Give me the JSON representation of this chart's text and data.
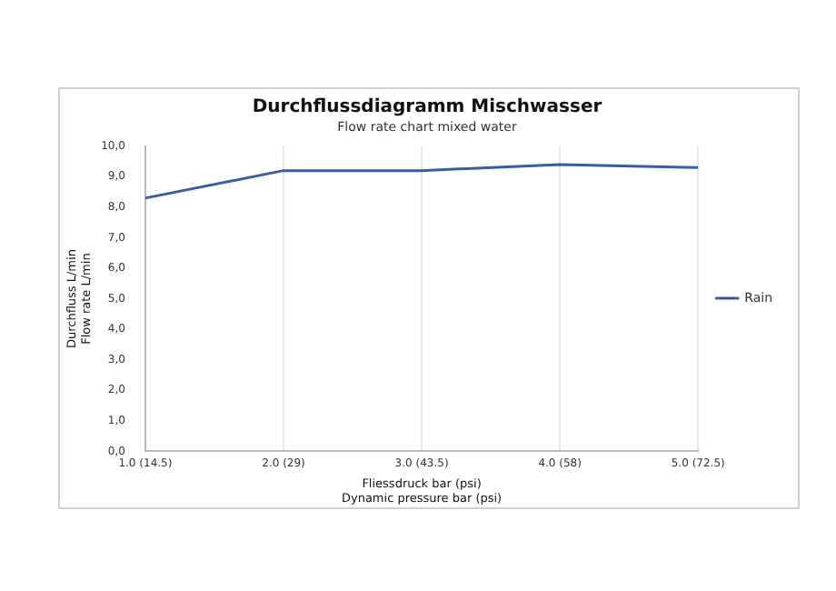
{
  "chart_data": {
    "type": "line",
    "title": "Durchflussdiagramm Mischwasser",
    "subtitle": "Flow rate chart mixed water",
    "xlabel": "Fliessdruck bar (psi)\nDynamic pressure bar (psi)",
    "ylabel": "Durchfluss L/min\nFlow rate L/min",
    "categories": [
      "1.0 (14.5)",
      "2.0 (29)",
      "3.0 (43.5)",
      "4.0 (58)",
      "5.0 (72.5)"
    ],
    "series": [
      {
        "name": "Rain",
        "color": "#3a5ba8",
        "values": [
          8.3,
          9.2,
          9.2,
          9.4,
          9.3
        ]
      }
    ],
    "ylim": [
      0,
      10
    ],
    "yticks": [
      {
        "value": 0,
        "label": "0,0"
      },
      {
        "value": 1,
        "label": "1,0"
      },
      {
        "value": 2,
        "label": "2,0"
      },
      {
        "value": 3,
        "label": "3,0"
      },
      {
        "value": 4,
        "label": "4,0"
      },
      {
        "value": 5,
        "label": "5,0"
      },
      {
        "value": 6,
        "label": "6,0"
      },
      {
        "value": 7,
        "label": "7,0"
      },
      {
        "value": 8,
        "label": "8,0"
      },
      {
        "value": 9,
        "label": "9,0"
      },
      {
        "value": 10,
        "label": "10,0"
      }
    ],
    "grid": "x",
    "legend": "right",
    "marker": "none"
  }
}
